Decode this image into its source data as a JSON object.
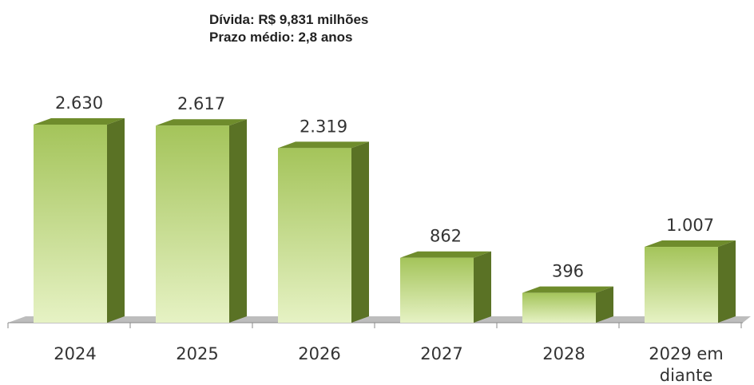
{
  "header": {
    "debt_line": "Dívida: R$ 9,831 milhões",
    "term_line": "Prazo médio: 2,8 anos"
  },
  "colors": {
    "bar_front_top": "#a4c45a",
    "bar_front_bottom": "#e6f2c4",
    "bar_side": "#5a7225",
    "bar_top": "#6f8c2c",
    "floor": "#bdbdbd"
  },
  "chart_data": {
    "type": "bar",
    "categories": [
      "2024",
      "2025",
      "2026",
      "2027",
      "2028",
      "2029 em\ndiante"
    ],
    "values": [
      2630,
      2617,
      2319,
      862,
      396,
      1007
    ],
    "value_labels": [
      "2.630",
      "2.617",
      "2.319",
      "862",
      "396",
      "1.007"
    ],
    "title": "",
    "xlabel": "",
    "ylabel": "",
    "ylim": [
      0,
      2630
    ],
    "grid": false,
    "legend": "none"
  }
}
